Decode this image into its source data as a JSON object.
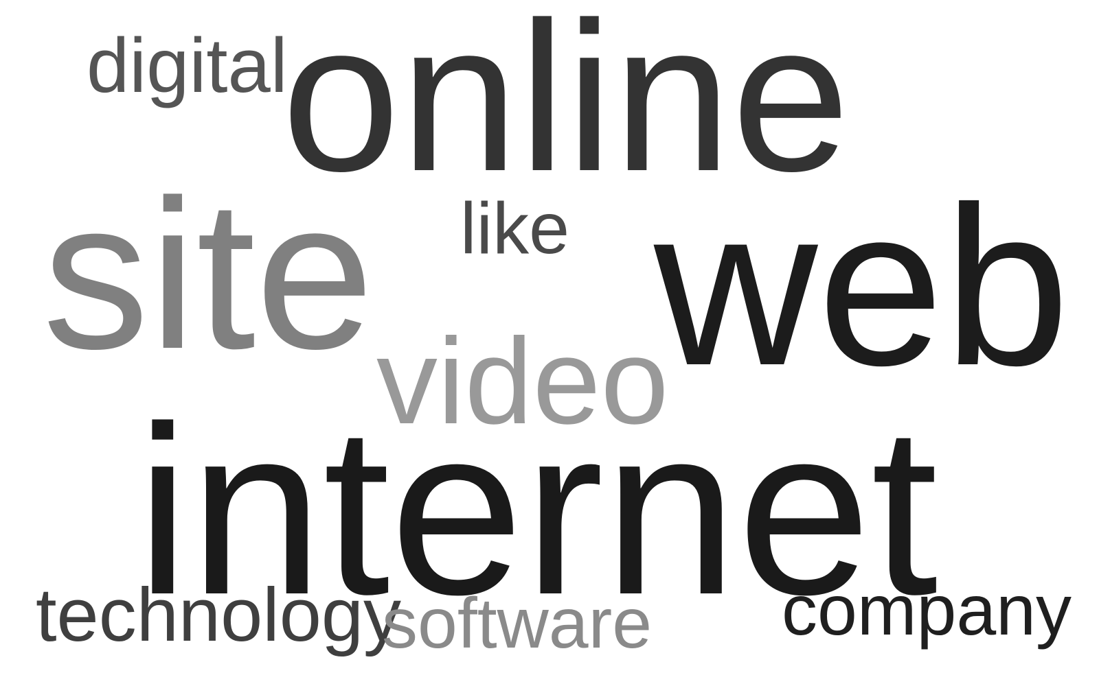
{
  "words": [
    {
      "text": "online",
      "color": "#333333"
    },
    {
      "text": "digital",
      "color": "#555555"
    },
    {
      "text": "site",
      "color": "#808080"
    },
    {
      "text": "like",
      "color": "#4a4a4a"
    },
    {
      "text": "web",
      "color": "#1c1c1c"
    },
    {
      "text": "video",
      "color": "#999999"
    },
    {
      "text": "internet",
      "color": "#1a1a1a"
    },
    {
      "text": "technology",
      "color": "#3f3f3f"
    },
    {
      "text": "software",
      "color": "#8a8a8a"
    },
    {
      "text": "company",
      "color": "#1f1f1f"
    }
  ]
}
